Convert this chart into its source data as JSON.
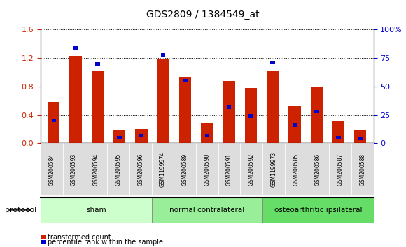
{
  "title": "GDS2809 / 1384549_at",
  "samples": [
    "GSM200584",
    "GSM200593",
    "GSM200594",
    "GSM200595",
    "GSM200596",
    "GSM1199974",
    "GSM200589",
    "GSM200590",
    "GSM200591",
    "GSM200592",
    "GSM1199973",
    "GSM200585",
    "GSM200586",
    "GSM200587",
    "GSM200588"
  ],
  "red_values": [
    0.58,
    1.23,
    1.02,
    0.18,
    0.2,
    1.19,
    0.93,
    0.28,
    0.88,
    0.78,
    1.02,
    0.52,
    0.8,
    0.32,
    0.18
  ],
  "blue_pct": [
    20,
    84,
    70,
    5,
    7,
    78,
    55,
    7,
    32,
    24,
    71,
    16,
    28,
    5,
    4
  ],
  "groups": [
    {
      "label": "sham",
      "start": 0,
      "end": 5
    },
    {
      "label": "normal contralateral",
      "start": 5,
      "end": 10
    },
    {
      "label": "osteoarthritic ipsilateral",
      "start": 10,
      "end": 15
    }
  ],
  "group_colors": [
    "#ccffcc",
    "#99ee99",
    "#66dd66"
  ],
  "ylim_left": [
    0,
    1.6
  ],
  "ylim_right": [
    0,
    100
  ],
  "yticks_left": [
    0,
    0.4,
    0.8,
    1.2,
    1.6
  ],
  "yticks_right": [
    0,
    25,
    50,
    75,
    100
  ],
  "ytick_labels_right": [
    "0",
    "25",
    "50",
    "75",
    "100%"
  ],
  "red_color": "#cc2200",
  "blue_color": "#0000cc",
  "bar_width": 0.55,
  "protocol_label": "protocol"
}
